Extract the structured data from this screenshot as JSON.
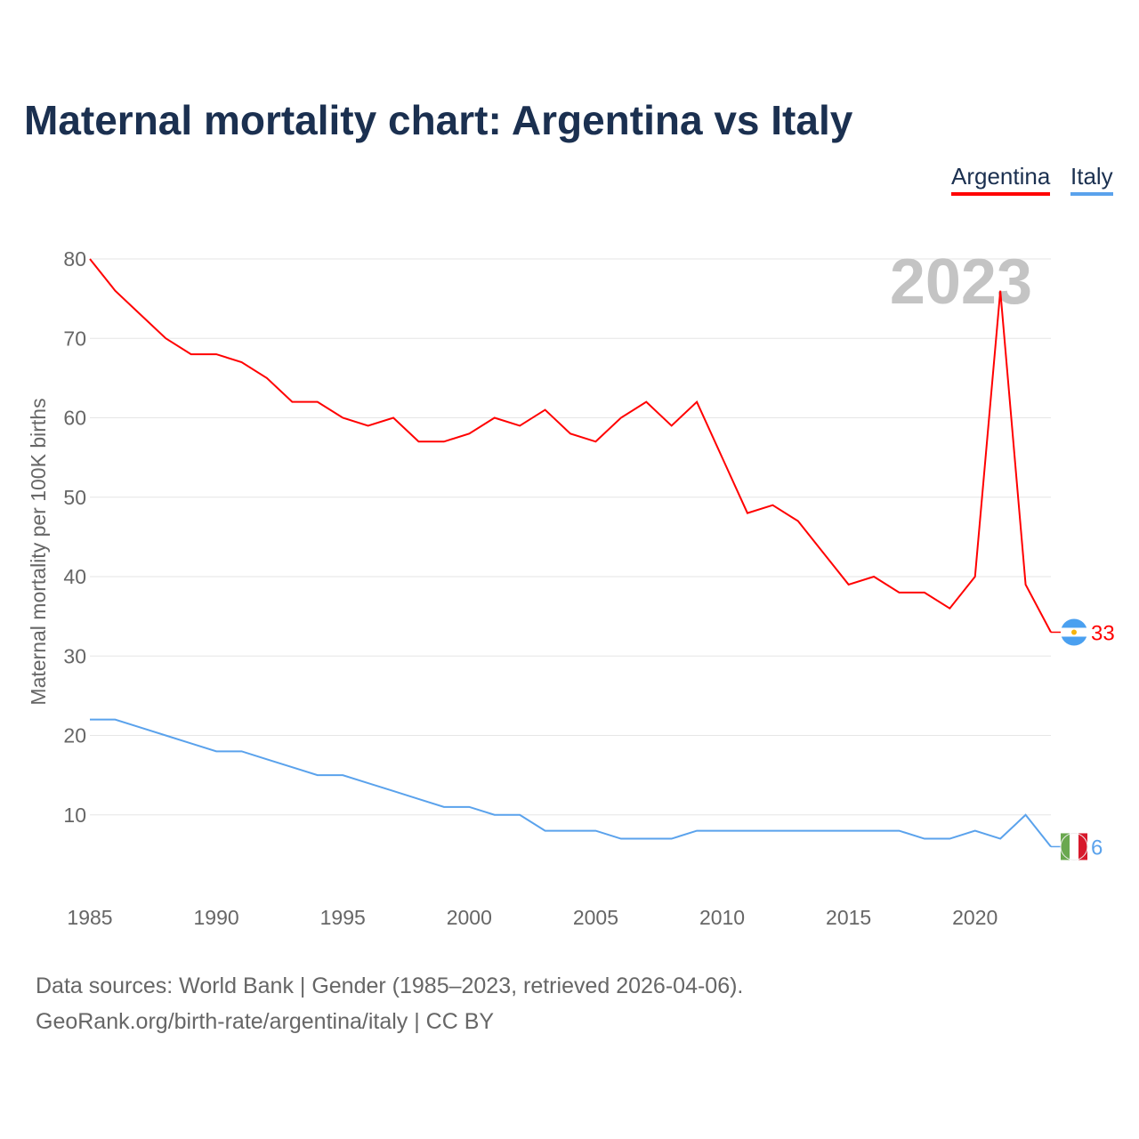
{
  "chart_data": {
    "type": "line",
    "title": "Maternal mortality chart: Argentina vs Italy",
    "ylabel": "Maternal mortality per 100K births",
    "xlabel": "",
    "year_label": "2023",
    "xlim": [
      1985,
      2023
    ],
    "ylim": [
      0,
      80
    ],
    "yticks": [
      10,
      20,
      30,
      40,
      50,
      60,
      70,
      80
    ],
    "xticks": [
      1985,
      1990,
      1995,
      2000,
      2005,
      2010,
      2015,
      2020
    ],
    "grid": true,
    "legend_position": "top-right",
    "x": [
      1985,
      1986,
      1987,
      1988,
      1989,
      1990,
      1991,
      1992,
      1993,
      1994,
      1995,
      1996,
      1997,
      1998,
      1999,
      2000,
      2001,
      2002,
      2003,
      2004,
      2005,
      2006,
      2007,
      2008,
      2009,
      2010,
      2011,
      2012,
      2013,
      2014,
      2015,
      2016,
      2017,
      2018,
      2019,
      2020,
      2021,
      2022,
      2023
    ],
    "series": [
      {
        "name": "Argentina",
        "color": "#ff0000",
        "end_label": "33",
        "values": [
          80,
          76,
          73,
          70,
          68,
          68,
          67,
          65,
          62,
          62,
          60,
          59,
          60,
          57,
          57,
          58,
          60,
          59,
          61,
          58,
          57,
          60,
          62,
          59,
          62,
          55,
          48,
          49,
          47,
          43,
          39,
          40,
          38,
          38,
          36,
          40,
          76,
          39,
          33
        ]
      },
      {
        "name": "Italy",
        "color": "#5aa2ec",
        "end_label": "6",
        "values": [
          22,
          22,
          21,
          20,
          19,
          18,
          18,
          17,
          16,
          15,
          15,
          14,
          13,
          12,
          11,
          11,
          10,
          10,
          8,
          8,
          8,
          7,
          7,
          7,
          8,
          8,
          8,
          8,
          8,
          8,
          8,
          8,
          8,
          7,
          7,
          8,
          7,
          10,
          6
        ]
      }
    ]
  },
  "source": {
    "line1": "Data sources: World Bank | Gender (1985–2023, retrieved 2026-04-06).",
    "line2": "GeoRank.org/birth-rate/argentina/italy | CC BY"
  }
}
